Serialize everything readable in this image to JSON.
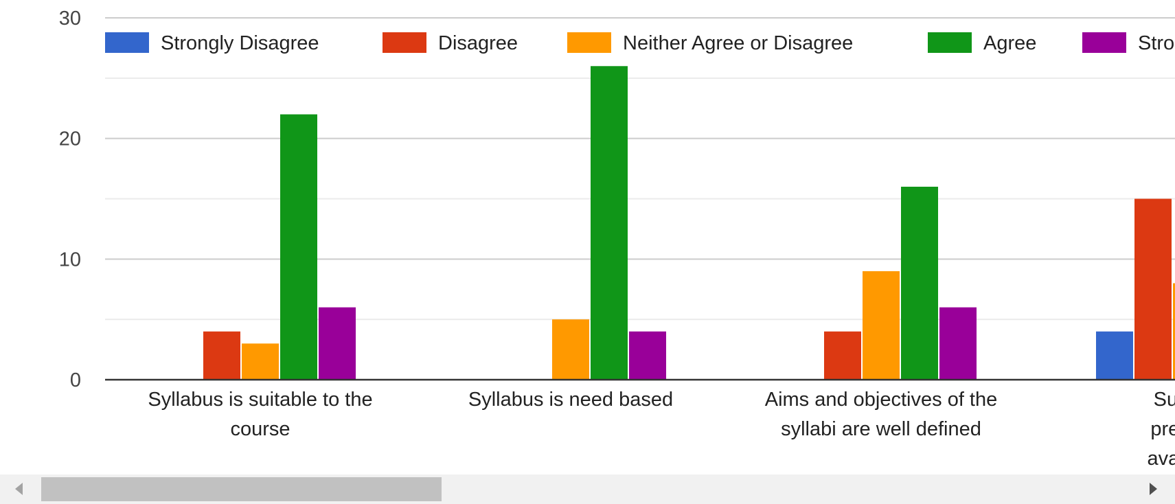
{
  "chart_data": {
    "type": "bar",
    "title": "",
    "xlabel": "",
    "ylabel": "",
    "ylim": [
      0,
      30
    ],
    "yticks": [
      "0",
      "10",
      "20",
      "30"
    ],
    "grid": true,
    "legend_position": "top",
    "categories": [
      "Syllabus is suitable to the course",
      "Syllabus is need based",
      "Aims and objectives of the syllabi are well defined",
      "Sufficient reference books prescribed in the syllabi are available in the library"
    ],
    "category_label_lines": [
      [
        "Syllabus is suitable to the",
        "course"
      ],
      [
        "Syllabus is need based"
      ],
      [
        "Aims and objectives of the",
        "syllabi are well defined"
      ],
      [
        "Sufficien",
        "prescribe",
        "available i"
      ]
    ],
    "series": [
      {
        "name": "Strongly Disagree",
        "legend_label": "Strongly Disagree",
        "color": "#3366cc",
        "values": [
          0,
          0,
          0,
          4
        ]
      },
      {
        "name": "Disagree",
        "legend_label": "Disagree",
        "color": "#dc3912",
        "values": [
          4,
          0,
          4,
          15
        ]
      },
      {
        "name": "Neither Agree or Disagree",
        "legend_label": "Neither Agree or Disagree",
        "color": "#ff9900",
        "values": [
          3,
          5,
          9,
          8
        ]
      },
      {
        "name": "Agree",
        "legend_label": "Agree",
        "color": "#109618",
        "values": [
          22,
          26,
          16,
          0
        ]
      },
      {
        "name": "Strongly Agree",
        "legend_label": "Stro",
        "color": "#990099",
        "values": [
          6,
          4,
          6,
          0
        ]
      }
    ]
  },
  "scrollbar": {
    "left_icon": "triangle-left-icon",
    "right_icon": "triangle-right-icon"
  }
}
